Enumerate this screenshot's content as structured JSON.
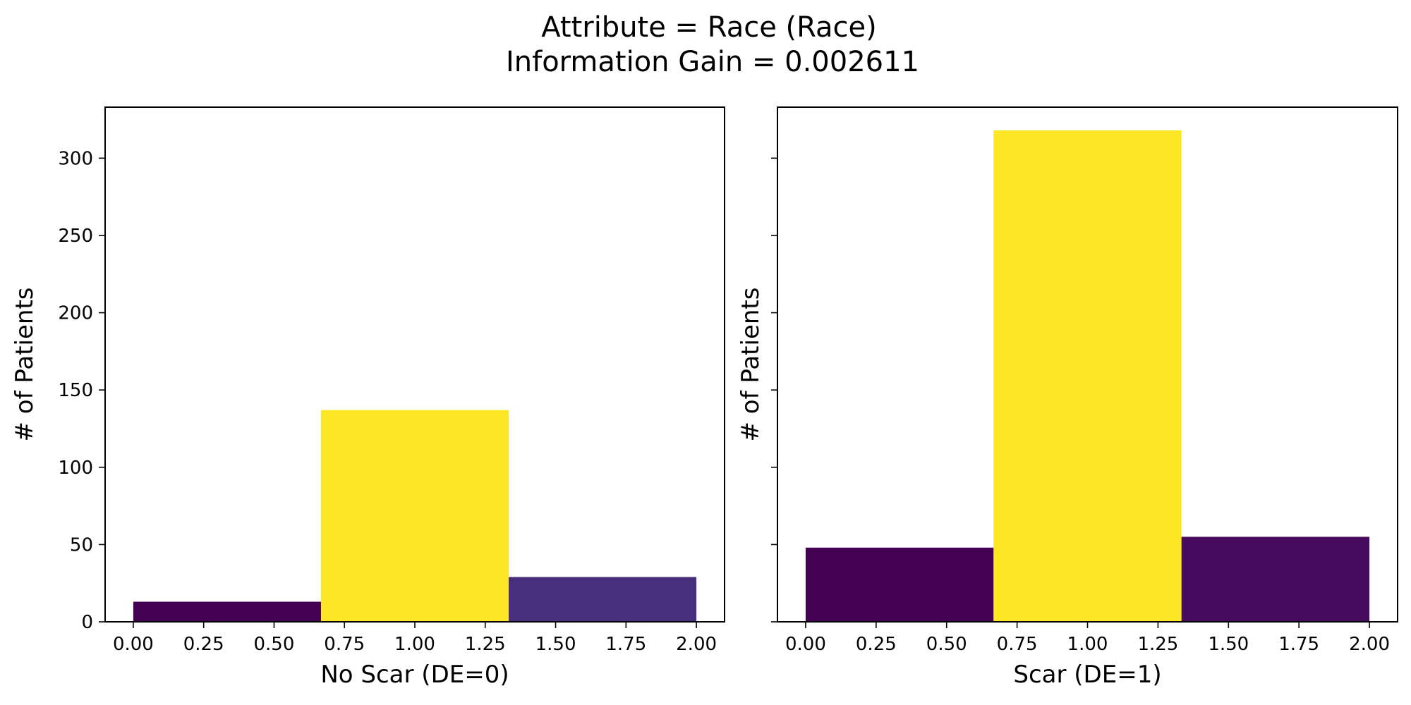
{
  "title_line1": "Attribute = Race (Race)",
  "title_line2": "Information Gain = 0.002611",
  "colors": {
    "viridis_low": "#440154",
    "viridis_low2": "#460b5e",
    "viridis_mid_low": "#472f7d",
    "viridis_high": "#fde725"
  },
  "chart_data": [
    {
      "type": "bar",
      "xlabel": "No Scar (DE=0)",
      "ylabel": "# of Patients",
      "xlim": [
        -0.1,
        2.1
      ],
      "ylim": [
        0,
        333
      ],
      "xticks": [
        "0.00",
        "0.25",
        "0.50",
        "0.75",
        "1.00",
        "1.25",
        "1.50",
        "1.75",
        "2.00"
      ],
      "yticks": [
        "0",
        "50",
        "100",
        "150",
        "200",
        "250",
        "300"
      ],
      "grid": false,
      "bins": [
        {
          "x0": 0.0,
          "x1": 0.6667,
          "value": 13,
          "color": "#440154"
        },
        {
          "x0": 0.6667,
          "x1": 1.3333,
          "value": 137,
          "color": "#fde725"
        },
        {
          "x0": 1.3333,
          "x1": 2.0,
          "value": 29,
          "color": "#472f7d"
        }
      ]
    },
    {
      "type": "bar",
      "xlabel": "Scar (DE=1)",
      "ylabel": "# of Patients",
      "xlim": [
        -0.1,
        2.1
      ],
      "ylim": [
        0,
        333
      ],
      "xticks": [
        "0.00",
        "0.25",
        "0.50",
        "0.75",
        "1.00",
        "1.25",
        "1.50",
        "1.75",
        "2.00"
      ],
      "yticks": [],
      "grid": false,
      "bins": [
        {
          "x0": 0.0,
          "x1": 0.6667,
          "value": 48,
          "color": "#440154"
        },
        {
          "x0": 0.6667,
          "x1": 1.3333,
          "value": 318,
          "color": "#fde725"
        },
        {
          "x0": 1.3333,
          "x1": 2.0,
          "value": 55,
          "color": "#460b5e"
        }
      ]
    }
  ]
}
